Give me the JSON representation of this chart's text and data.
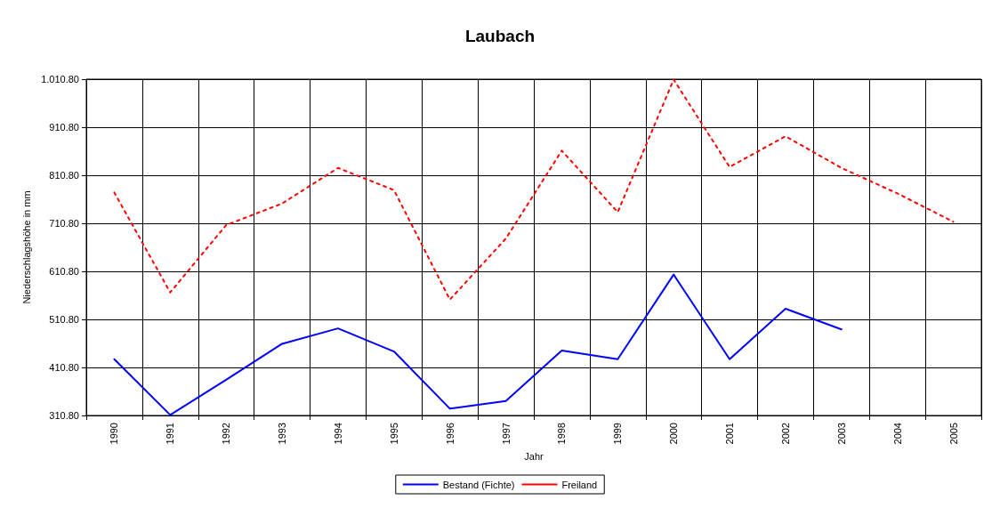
{
  "chart_data": {
    "type": "line",
    "title": "Laubach",
    "xlabel": "Jahr",
    "ylabel": "Niederschlagshöhe in mm",
    "categories": [
      "1990",
      "1991",
      "1992",
      "1993",
      "1994",
      "1995",
      "1996",
      "1997",
      "1998",
      "1999",
      "2000",
      "2001",
      "2002",
      "2003",
      "2004",
      "2005"
    ],
    "series": [
      {
        "name": "Bestand (Fichte)",
        "color": "#0000ff",
        "line_style": "solid",
        "values": [
          428,
          312,
          385,
          460,
          492,
          444,
          325,
          341,
          446,
          428,
          604,
          428,
          533,
          490,
          null,
          null
        ]
      },
      {
        "name": "Freiland",
        "color": "#ff0000",
        "line_style": "dotted",
        "values": [
          775,
          567,
          707,
          752,
          826,
          780,
          552,
          679,
          862,
          734,
          1010,
          828,
          892,
          826,
          773,
          714
        ]
      }
    ],
    "ylim": [
      310.8,
      1010.8
    ],
    "yticks": [
      {
        "value": 310.8,
        "label": "310.80"
      },
      {
        "value": 410.8,
        "label": "410.80"
      },
      {
        "value": 510.8,
        "label": "510.80"
      },
      {
        "value": 610.8,
        "label": "610.80"
      },
      {
        "value": 710.8,
        "label": "710.80"
      },
      {
        "value": 810.8,
        "label": "810.80"
      },
      {
        "value": 910.8,
        "label": "910.80"
      },
      {
        "value": 1010.8,
        "label": "1.010.80"
      }
    ],
    "grid": true,
    "legend": "bottom",
    "marker": "none"
  }
}
